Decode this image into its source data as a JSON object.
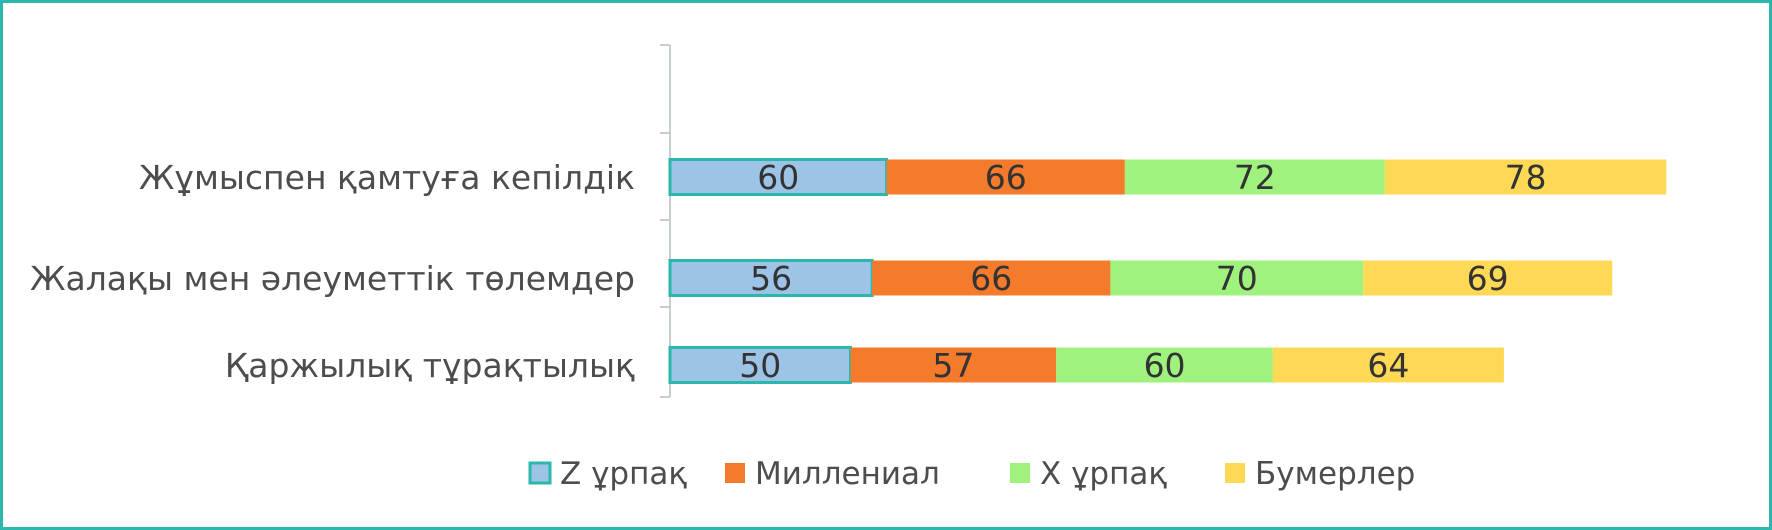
{
  "chart_data": {
    "type": "bar",
    "orientation": "horizontal",
    "stacked": true,
    "categories": [
      "Қаржылық тұрақтылық",
      "Жалақы мен әлеуметтік төлемдер",
      "Жұмыспен қамтуға  кепілдік"
    ],
    "series": [
      {
        "name": "Z ұрпақ",
        "color": "#9dc3e6",
        "values": [
          50,
          56,
          60
        ]
      },
      {
        "name": "Миллениал",
        "color": "#f47b2b",
        "values": [
          57,
          66,
          66
        ]
      },
      {
        "name": "X ұрпақ",
        "color": "#9ef27d",
        "values": [
          60,
          70,
          72
        ]
      },
      {
        "name": "Бумерлер",
        "color": "#ffd955",
        "values": [
          64,
          69,
          78
        ]
      }
    ],
    "data_labels": true,
    "legend_position": "bottom",
    "grid": false,
    "colors": {
      "frame": "#2cb7ad",
      "axis": "#c8cdd0",
      "z_outline": "#2cb7ad"
    }
  }
}
